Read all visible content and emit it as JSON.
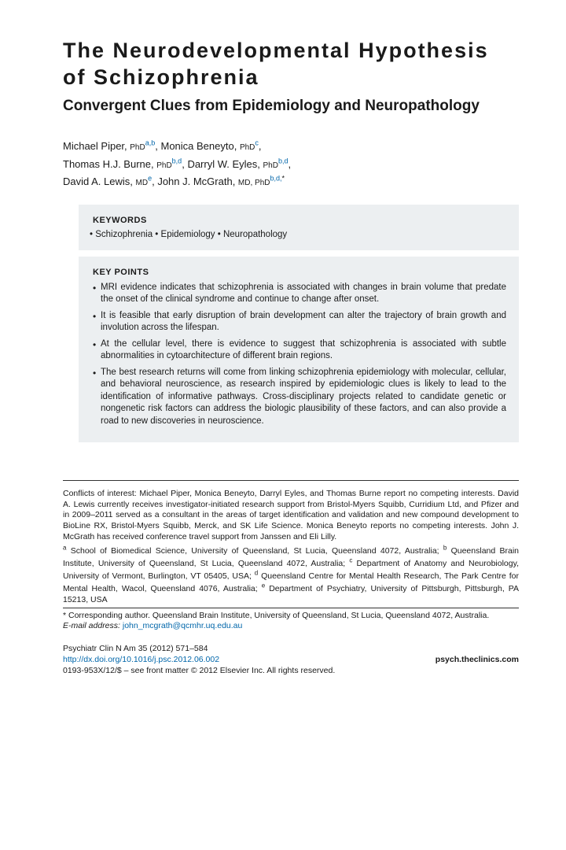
{
  "title": "The Neurodevelopmental Hypothesis of Schizophrenia",
  "subtitle": "Convergent Clues from Epidemiology and Neuropathology",
  "authors": [
    {
      "name": "Michael Piper",
      "degree": "PhD",
      "sup": "a,b"
    },
    {
      "name": "Monica Beneyto",
      "degree": "PhD",
      "sup": "c"
    },
    {
      "name": "Thomas H.J. Burne",
      "degree": "PhD",
      "sup": "b,d"
    },
    {
      "name": "Darryl W. Eyles",
      "degree": "PhD",
      "sup": "b,d"
    },
    {
      "name": "David A. Lewis",
      "degree": "MD",
      "sup": "e"
    },
    {
      "name": "John J. McGrath",
      "degree": "MD, PhD",
      "sup": "b,d,*"
    }
  ],
  "keywords_header": "KEYWORDS",
  "keywords_line": "• Schizophrenia • Epidemiology • Neuropathology",
  "keypoints_header": "KEY POINTS",
  "keypoints": [
    "MRI evidence indicates that schizophrenia is associated with changes in brain volume that predate the onset of the clinical syndrome and continue to change after onset.",
    "It is feasible that early disruption of brain development can alter the trajectory of brain growth and involution across the lifespan.",
    "At the cellular level, there is evidence to suggest that schizophrenia is associated with subtle abnormalities in cytoarchitecture of different brain regions.",
    "The best research returns will come from linking schizophrenia epidemiology with molecular, cellular, and behavioral neuroscience, as research inspired by epidemiologic clues is likely to lead to the identification of informative pathways. Cross-disciplinary projects related to candidate genetic or nongenetic risk factors can address the biologic plausibility of these factors, and can also provide a road to new discoveries in neuroscience."
  ],
  "conflicts": "Conflicts of interest: Michael Piper, Monica Beneyto, Darryl Eyles, and Thomas Burne report no competing interests. David A. Lewis currently receives investigator-initiated research support from Bristol-Myers Squibb, Curridium Ltd, and Pfizer and in 2009–2011 served as a consultant in the areas of target identification and validation and new compound development to BioLine RX, Bristol-Myers Squibb, Merck, and SK Life Science. Monica Beneyto reports no competing interests. John J. McGrath has received conference travel support from Janssen and Eli Lilly.",
  "affiliations": [
    {
      "sup": "a",
      "text": " School of Biomedical Science, University of Queensland, St Lucia, Queensland 4072, Australia; "
    },
    {
      "sup": "b",
      "text": " Queensland Brain Institute, University of Queensland, St Lucia, Queensland 4072, Australia; "
    },
    {
      "sup": "c",
      "text": " Department of Anatomy and Neurobiology, University of Vermont, Burlington, VT 05405, USA; "
    },
    {
      "sup": "d",
      "text": " Queensland Centre for Mental Health Research, The Park Centre for Mental Health, Wacol, Queensland 4076, Australia; "
    },
    {
      "sup": "e",
      "text": " Department of Psychiatry, University of Pittsburgh, Pittsburgh, PA 15213, USA"
    }
  ],
  "corresponding": "* Corresponding author. Queensland Brain Institute, University of Queensland, St Lucia, Queensland 4072, Australia.",
  "email_label": "E-mail address: ",
  "email": "john_mcgrath@qcmhr.uq.edu.au",
  "journal_ref": "Psychiatr Clin N Am 35 (2012) 571–584",
  "doi": "http://dx.doi.org/10.1016/j.psc.2012.06.002",
  "clinics": "psych.theclinics.com",
  "copyright_line": "0193-953X/12/$ – see front matter © 2012 Elsevier Inc. All rights reserved."
}
